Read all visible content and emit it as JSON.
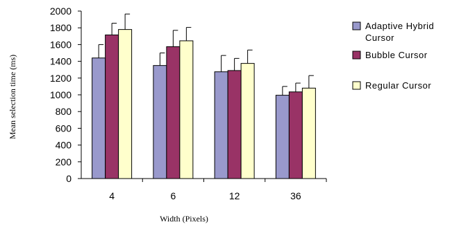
{
  "chart_data": {
    "type": "bar",
    "title": "",
    "xlabel": "Width (Pixels)",
    "ylabel": "Mean selection time (ms)",
    "ylim": [
      0,
      2000
    ],
    "ytick_step": 200,
    "categories": [
      "4",
      "6",
      "12",
      "36"
    ],
    "grid": false,
    "legend_position": "right",
    "error_bars": "one-sided (upper)",
    "series": [
      {
        "name": "Adaptive Hybrid Cursor",
        "legend_lines": [
          "Adaptive Hybrid",
          "Cursor"
        ],
        "color": "#9999cc",
        "values": [
          1440,
          1350,
          1275,
          995
        ],
        "errors": [
          160,
          150,
          195,
          105
        ]
      },
      {
        "name": "Bubble Cursor",
        "legend_lines": [
          "Bubble Cursor"
        ],
        "color": "#993366",
        "values": [
          1715,
          1575,
          1290,
          1035
        ],
        "errors": [
          140,
          195,
          145,
          105
        ]
      },
      {
        "name": "Regular Cursor",
        "legend_lines": [
          "Regular Cursor"
        ],
        "color": "#ffffcc",
        "values": [
          1780,
          1645,
          1375,
          1080
        ],
        "errors": [
          185,
          160,
          160,
          150
        ]
      }
    ]
  }
}
